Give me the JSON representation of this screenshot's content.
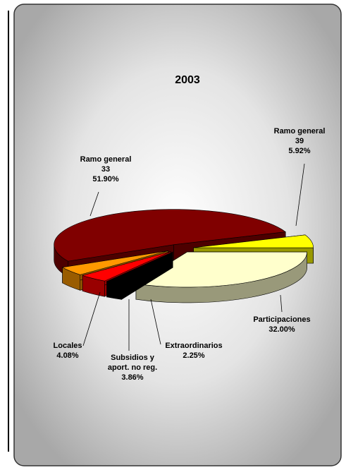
{
  "chart_data": {
    "type": "pie",
    "title": "2003",
    "categories": [
      "Ramo general 33",
      "Ramo general 39",
      "Participaciones",
      "Extraordinarios",
      "Subsidios y aport. no reg.",
      "Locales"
    ],
    "values": [
      51.9,
      5.92,
      32.0,
      2.25,
      3.86,
      4.08
    ],
    "value_labels": [
      "51.90%",
      "5.92%",
      "32.00%",
      "2.25%",
      "3.86%",
      "4.08%"
    ],
    "colors": [
      "#800000",
      "#ffff00",
      "#ffffcc",
      "#000000",
      "#ff0000",
      "#ff9900"
    ]
  }
}
